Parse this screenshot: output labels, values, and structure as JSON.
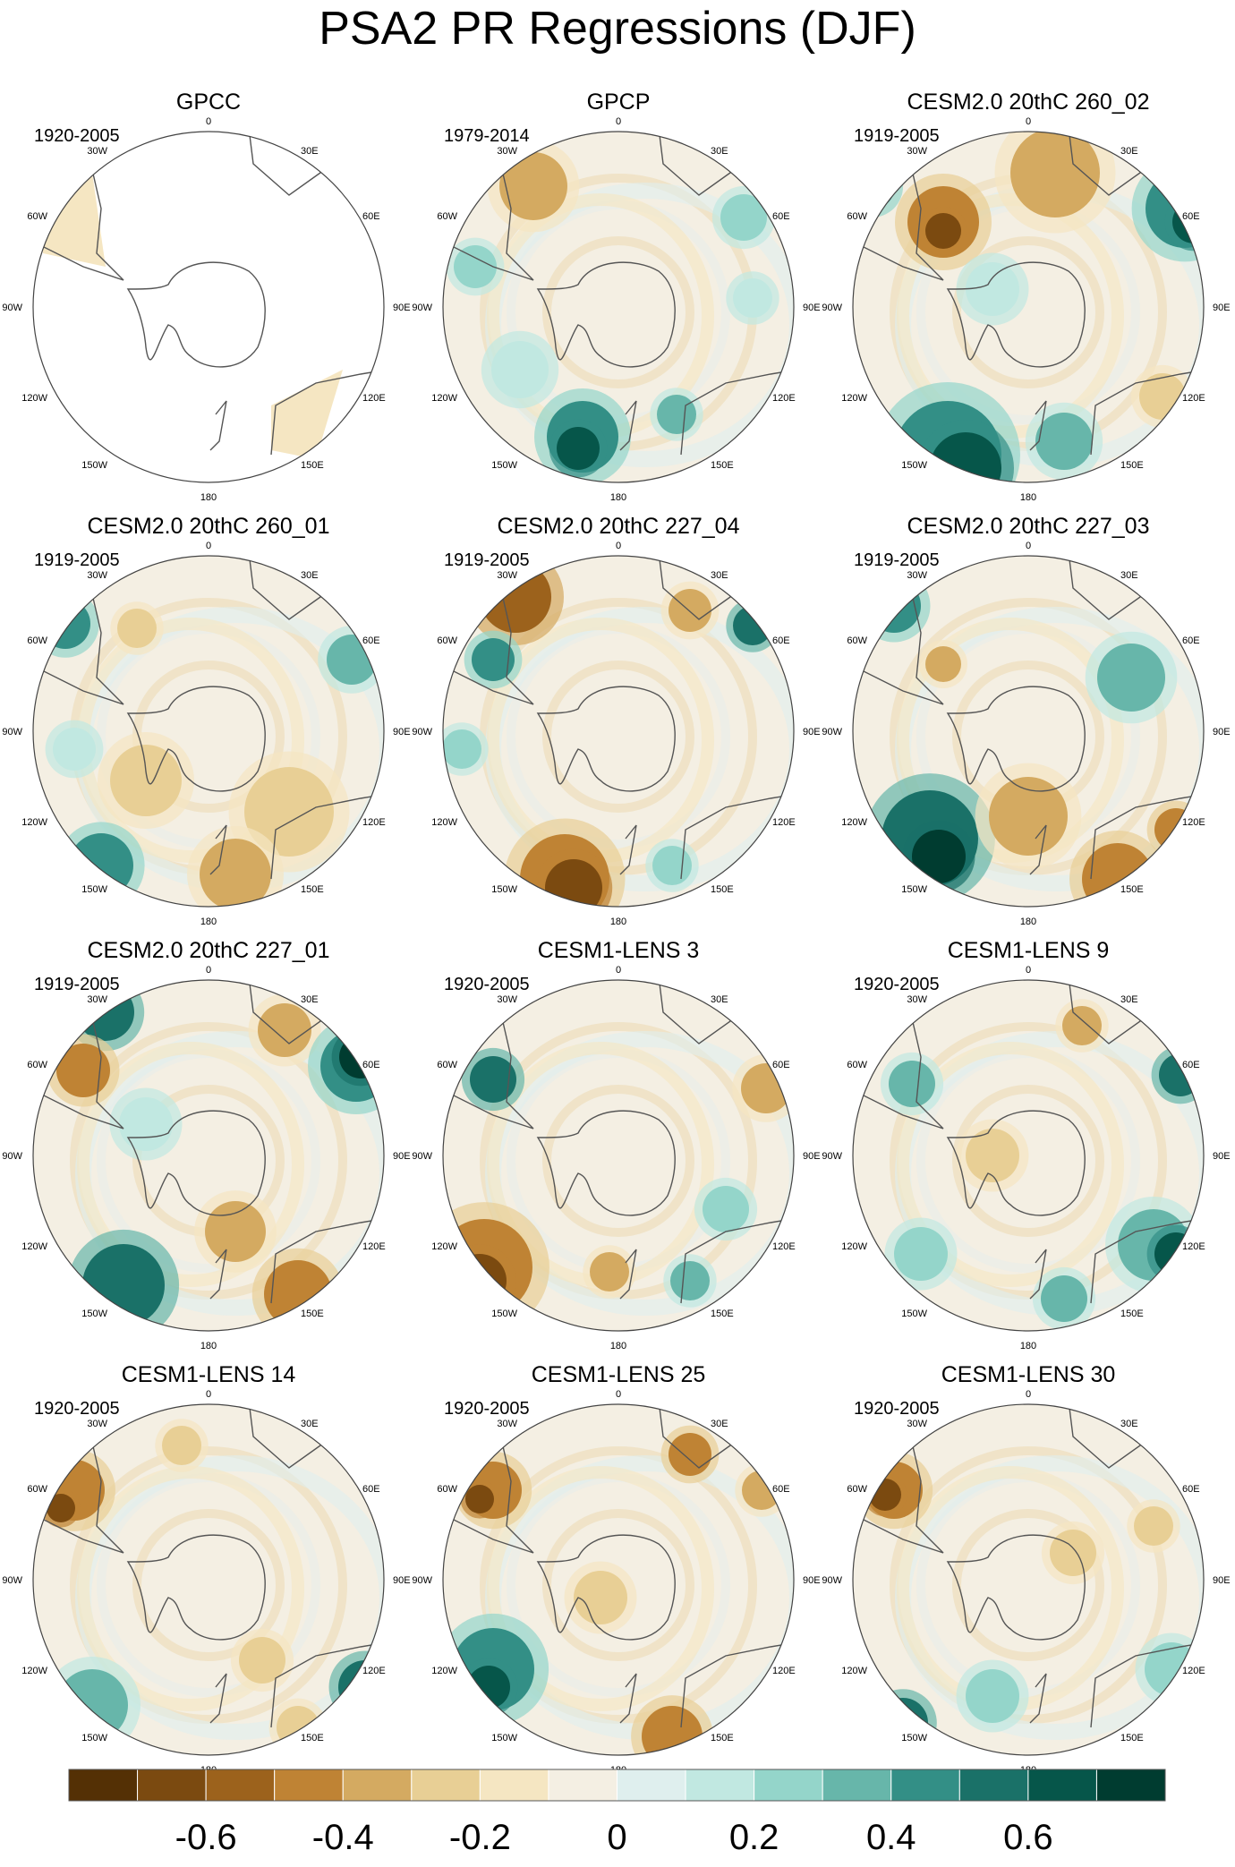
{
  "title": "PSA2 PR Regressions (DJF)",
  "colors": {
    "levels": [
      "#543005",
      "#7b4a10",
      "#9c621c",
      "#bf8334",
      "#d4aa61",
      "#e8cf95",
      "#f5e6c2",
      "#f4efe3",
      "#dfefee",
      "#c1e8e1",
      "#94d5ca",
      "#67b6aa",
      "#338f86",
      "#1a7168",
      "#06564a",
      "#003c30"
    ],
    "land_outline": "#555555",
    "frame": "#444444"
  },
  "map_labels": {
    "top": "0",
    "bottom": "180",
    "left": "90W",
    "right": "90E",
    "upper_left_1": "30W",
    "upper_left_2": "60W",
    "upper_right_1": "30E",
    "upper_right_2": "60E",
    "lower_left_1": "120W",
    "lower_left_2": "150W",
    "lower_right_1": "120E",
    "lower_right_2": "150E"
  },
  "chart_data": [
    {
      "type": "heatmap",
      "title": "GPCC",
      "period": "1920-2005"
    },
    {
      "type": "heatmap",
      "title": "GPCP",
      "period": "1979-2014"
    },
    {
      "type": "heatmap",
      "title": "CESM2.0 20thC 260_02",
      "period": "1919-2005"
    },
    {
      "type": "heatmap",
      "title": "CESM2.0 20thC 260_01",
      "period": "1919-2005"
    },
    {
      "type": "heatmap",
      "title": "CESM2.0 20thC 227_04",
      "period": "1919-2005"
    },
    {
      "type": "heatmap",
      "title": "CESM2.0 20thC 227_03",
      "period": "1919-2005"
    },
    {
      "type": "heatmap",
      "title": "CESM2.0 20thC 227_01",
      "period": "1919-2005"
    },
    {
      "type": "heatmap",
      "title": "CESM1-LENS 3",
      "period": "1920-2005"
    },
    {
      "type": "heatmap",
      "title": "CESM1-LENS 9",
      "period": "1920-2005"
    },
    {
      "type": "heatmap",
      "title": "CESM1-LENS 14",
      "period": "1920-2005"
    },
    {
      "type": "heatmap",
      "title": "CESM1-LENS 25",
      "period": "1920-2005"
    },
    {
      "type": "heatmap",
      "title": "CESM1-LENS 30",
      "period": "1920-2005"
    }
  ],
  "colorbar": {
    "ticks": [
      {
        "label": "-0.6",
        "value": -0.6
      },
      {
        "label": "-0.4",
        "value": -0.4
      },
      {
        "label": "-0.2",
        "value": -0.2
      },
      {
        "label": "0",
        "value": 0
      },
      {
        "label": "0.2",
        "value": 0.2
      },
      {
        "label": "0.4",
        "value": 0.4
      },
      {
        "label": "0.6",
        "value": 0.6
      }
    ],
    "range": [
      -0.8,
      0.8
    ]
  }
}
